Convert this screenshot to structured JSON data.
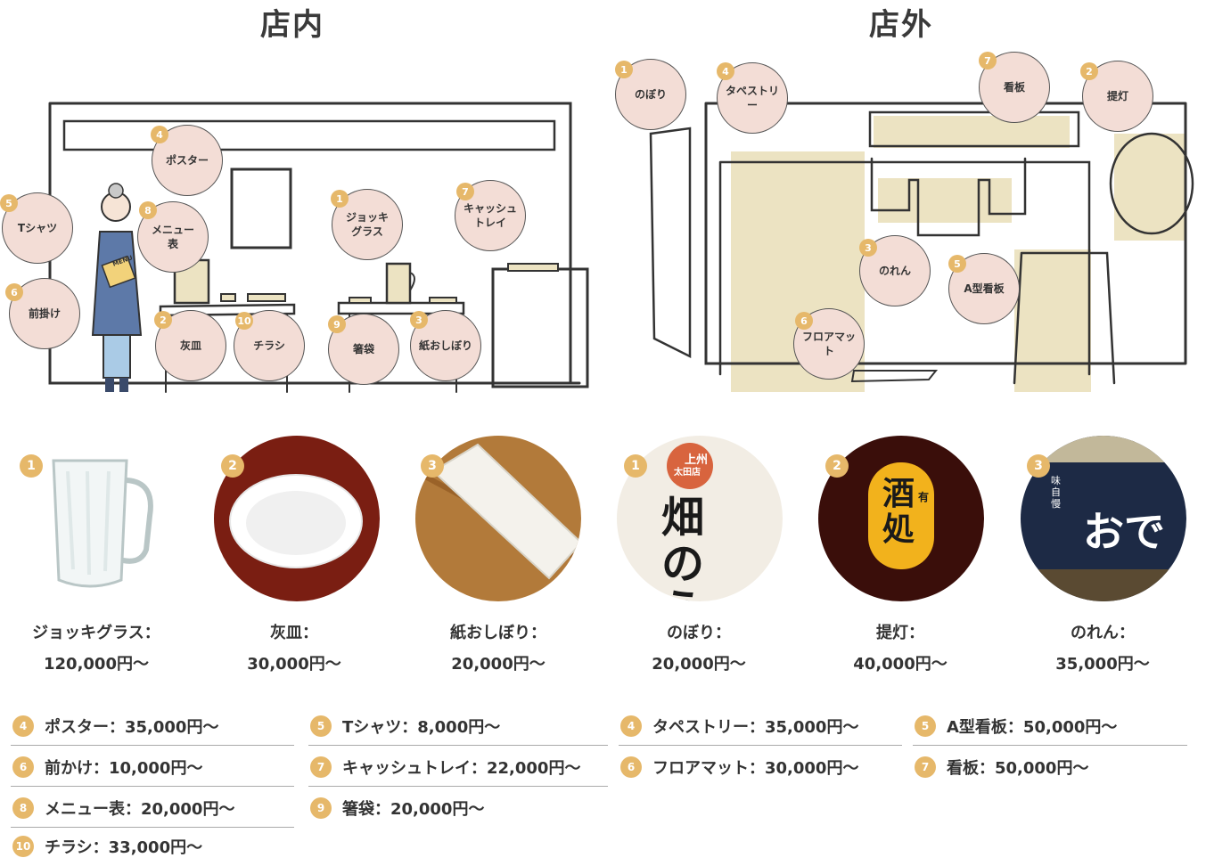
{
  "titles": {
    "inside": "店内",
    "outside": "店外"
  },
  "inside_labels": [
    {
      "num": "1",
      "text": "ジョッキ\nグラス"
    },
    {
      "num": "2",
      "text": "灰皿"
    },
    {
      "num": "3",
      "text": "紙おしぼり"
    },
    {
      "num": "4",
      "text": "ポスター"
    },
    {
      "num": "5",
      "text": "Tシャツ"
    },
    {
      "num": "6",
      "text": "前掛け"
    },
    {
      "num": "7",
      "text": "キャッシュ\nトレイ"
    },
    {
      "num": "8",
      "text": "メニュー\n表"
    },
    {
      "num": "9",
      "text": "箸袋"
    },
    {
      "num": "10",
      "text": "チラシ"
    }
  ],
  "outside_labels": [
    {
      "num": "1",
      "text": "のぼり"
    },
    {
      "num": "2",
      "text": "提灯"
    },
    {
      "num": "3",
      "text": "のれん"
    },
    {
      "num": "4",
      "text": "タペストリー"
    },
    {
      "num": "5",
      "text": "A型看板"
    },
    {
      "num": "6",
      "text": "フロアマット"
    },
    {
      "num": "7",
      "text": "看板"
    }
  ],
  "menu_text": "MENU",
  "products": [
    {
      "num": "1",
      "name": "ジョッキグラス：",
      "price": "120,000円〜"
    },
    {
      "num": "2",
      "name": "灰皿：",
      "price": "30,000円〜"
    },
    {
      "num": "3",
      "name": "紙おしぼり：",
      "price": "20,000円〜"
    },
    {
      "num": "1",
      "name": "のぼり：",
      "price": "20,000円〜"
    },
    {
      "num": "2",
      "name": "提灯：",
      "price": "40,000円〜"
    },
    {
      "num": "3",
      "name": "のれん：",
      "price": "35,000円〜"
    }
  ],
  "photo_text": {
    "nobori_top": "上州",
    "nobori_top2": "太田店",
    "nobori_main": "畑のう",
    "chochin_main": "酒処",
    "chochin_sub": "有",
    "noren_main": "おで",
    "noren_side": "味自慢"
  },
  "lists": {
    "col1": [
      {
        "num": "4",
        "text": "ポスター：35,000円〜"
      },
      {
        "num": "6",
        "text": "前かけ：10,000円〜"
      },
      {
        "num": "8",
        "text": "メニュー表：20,000円〜"
      },
      {
        "num": "10",
        "text": "チラシ：33,000円〜"
      }
    ],
    "col2": [
      {
        "num": "5",
        "text": "Tシャツ：8,000円〜"
      },
      {
        "num": "7",
        "text": "キャッシュトレイ：22,000円〜"
      },
      {
        "num": "9",
        "text": "箸袋：20,000円〜"
      }
    ],
    "col3": [
      {
        "num": "4",
        "text": "タペストリー：35,000円〜"
      },
      {
        "num": "6",
        "text": "フロアマット：30,000円〜"
      }
    ],
    "col4": [
      {
        "num": "5",
        "text": "A型看板：50,000円〜"
      },
      {
        "num": "7",
        "text": "看板：50,000円〜"
      }
    ]
  },
  "colors": {
    "accent": "#e6b86a",
    "bubble": "#f3ddd6",
    "highlight": "#ece3c2",
    "line": "#333333"
  }
}
